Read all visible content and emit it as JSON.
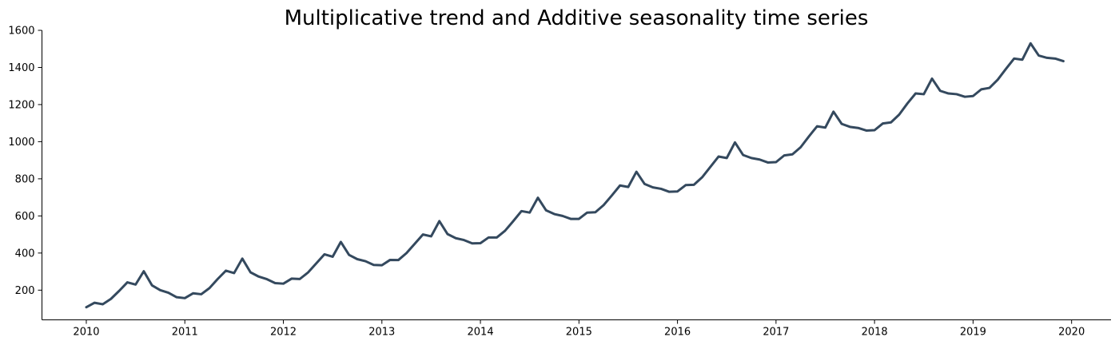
{
  "chart_data": {
    "type": "line",
    "title": "Multiplicative trend and Additive seasonality time series",
    "xlabel": "",
    "ylabel": "",
    "xlim": [
      2009.55,
      2020.4
    ],
    "ylim": [
      40,
      1600
    ],
    "x_ticks": [
      2010,
      2011,
      2012,
      2013,
      2014,
      2015,
      2016,
      2017,
      2018,
      2019,
      2020
    ],
    "x_tick_labels": [
      "2010",
      "2011",
      "2012",
      "2013",
      "2014",
      "2015",
      "2016",
      "2017",
      "2018",
      "2019",
      "2020"
    ],
    "y_ticks": [
      200,
      400,
      600,
      800,
      1000,
      1200,
      1400,
      1600
    ],
    "y_tick_labels": [
      "200",
      "400",
      "600",
      "800",
      "1000",
      "1200",
      "1400",
      "1600"
    ],
    "grid": false,
    "legend": "none",
    "line_color": "#34495e",
    "x_start": "2010-01",
    "x_step": "1 month",
    "series": [
      {
        "values": [
          108,
          132,
          124,
          153,
          196,
          242,
          230,
          302,
          226,
          200,
          186,
          162,
          157,
          183,
          178,
          211,
          260,
          305,
          292,
          370,
          296,
          273,
          259,
          238,
          235,
          262,
          260,
          295,
          344,
          393,
          380,
          460,
          390,
          367,
          356,
          336,
          334,
          363,
          362,
          400,
          450,
          500,
          490,
          572,
          502,
          480,
          470,
          452,
          453,
          484,
          484,
          520,
          572,
          626,
          618,
          698,
          630,
          610,
          600,
          584,
          584,
          618,
          620,
          658,
          710,
          764,
          756,
          838,
          772,
          754,
          746,
          730,
          732,
          766,
          768,
          808,
          864,
          920,
          912,
          996,
          928,
          912,
          904,
          888,
          890,
          926,
          932,
          970,
          1028,
          1083,
          1076,
          1162,
          1096,
          1080,
          1074,
          1060,
          1062,
          1098,
          1104,
          1146,
          1206,
          1260,
          1256,
          1340,
          1274,
          1260,
          1256,
          1242,
          1246,
          1282,
          1290,
          1334,
          1392,
          1448,
          1442,
          1530,
          1464,
          1452,
          1448,
          1434
        ]
      }
    ]
  }
}
